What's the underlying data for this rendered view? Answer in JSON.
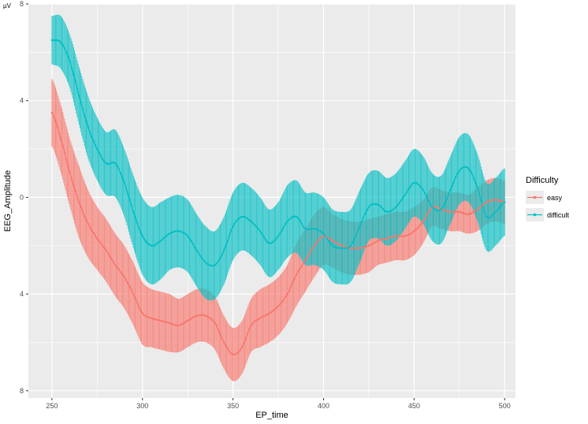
{
  "chart_data": {
    "type": "line",
    "xlabel": "EP_time",
    "ylabel": "EEG_Amplitude",
    "unit_label": "µV",
    "xlim": [
      237,
      506
    ],
    "ylim": [
      8.3,
      -8
    ],
    "x_ticks": [
      250,
      300,
      350,
      400,
      450,
      500
    ],
    "y_ticks": [
      -8,
      -4,
      0,
      4,
      8
    ],
    "y_tick_labels": [
      "8",
      "4",
      "0",
      "4",
      "8"
    ],
    "grid": true,
    "legend": {
      "title": "Difficulty",
      "placement": "right",
      "entries": [
        "easy",
        "difficult"
      ]
    },
    "series": [
      {
        "name": "easy",
        "color": "#F8766D",
        "x": [
          250,
          255,
          260,
          265,
          270,
          275,
          280,
          285,
          290,
          295,
          300,
          305,
          310,
          315,
          320,
          325,
          330,
          335,
          340,
          345,
          350,
          355,
          360,
          365,
          370,
          375,
          380,
          385,
          390,
          395,
          400,
          405,
          410,
          415,
          420,
          425,
          430,
          435,
          440,
          445,
          450,
          455,
          460,
          465,
          470,
          475,
          480,
          485,
          490,
          495,
          500
        ],
        "y": [
          -3.5,
          -2.4,
          -1.0,
          0.2,
          1.1,
          1.7,
          2.2,
          2.8,
          3.3,
          4.0,
          4.8,
          5.0,
          5.1,
          5.2,
          5.3,
          5.1,
          4.9,
          4.9,
          5.2,
          6.0,
          6.5,
          6.2,
          5.3,
          5.0,
          4.8,
          4.5,
          4.0,
          3.2,
          2.6,
          2.0,
          1.6,
          1.8,
          2.0,
          2.1,
          2.1,
          2.0,
          1.8,
          1.7,
          1.6,
          1.6,
          1.4,
          1.0,
          0.4,
          0.5,
          0.6,
          0.6,
          0.7,
          0.5,
          0.2,
          0.1,
          0.2
        ],
        "err": [
          1.4,
          1.4,
          1.4,
          1.5,
          1.4,
          1.3,
          1.3,
          1.3,
          1.3,
          1.3,
          1.3,
          1.2,
          1.2,
          1.2,
          1.1,
          1.1,
          1.1,
          1.1,
          1.1,
          1.1,
          1.1,
          1.1,
          1.1,
          1.2,
          1.2,
          1.2,
          1.2,
          1.3,
          1.3,
          1.3,
          1.2,
          1.1,
          1.1,
          1.1,
          1.1,
          1.1,
          1.0,
          1.0,
          1.0,
          1.0,
          1.0,
          0.9,
          0.8,
          0.8,
          0.8,
          0.8,
          0.8,
          0.9,
          0.9,
          0.9,
          0.9
        ]
      },
      {
        "name": "difficult",
        "color": "#00BFC4",
        "x": [
          250,
          255,
          260,
          265,
          270,
          275,
          280,
          285,
          290,
          295,
          300,
          305,
          310,
          315,
          320,
          325,
          330,
          335,
          340,
          345,
          350,
          355,
          360,
          365,
          370,
          375,
          380,
          385,
          390,
          395,
          400,
          405,
          410,
          415,
          420,
          425,
          430,
          435,
          440,
          445,
          450,
          455,
          460,
          465,
          470,
          475,
          480,
          485,
          490,
          495,
          500
        ],
        "y": [
          -6.5,
          -6.4,
          -5.6,
          -4.2,
          -2.9,
          -2.0,
          -1.4,
          -1.4,
          -0.6,
          0.6,
          1.6,
          2.0,
          1.8,
          1.5,
          1.4,
          1.6,
          2.2,
          2.7,
          2.8,
          2.2,
          1.2,
          0.8,
          1.0,
          1.4,
          1.9,
          1.6,
          1.0,
          0.8,
          1.3,
          1.3,
          1.5,
          2.0,
          2.1,
          2.0,
          1.2,
          0.4,
          0.3,
          0.6,
          0.4,
          -0.1,
          -0.6,
          -0.3,
          0.4,
          0.5,
          -0.3,
          -1.1,
          -1.2,
          -0.4,
          0.8,
          0.6,
          0.2
        ],
        "err": [
          1.0,
          1.1,
          1.1,
          1.2,
          1.3,
          1.3,
          1.3,
          1.4,
          1.4,
          1.5,
          1.6,
          1.6,
          1.6,
          1.5,
          1.5,
          1.5,
          1.5,
          1.5,
          1.4,
          1.4,
          1.4,
          1.4,
          1.4,
          1.4,
          1.4,
          1.4,
          1.5,
          1.5,
          1.5,
          1.5,
          1.5,
          1.5,
          1.5,
          1.5,
          1.5,
          1.4,
          1.4,
          1.4,
          1.4,
          1.4,
          1.4,
          1.4,
          1.4,
          1.4,
          1.4,
          1.4,
          1.4,
          1.4,
          1.4,
          1.4,
          1.4
        ]
      }
    ]
  }
}
